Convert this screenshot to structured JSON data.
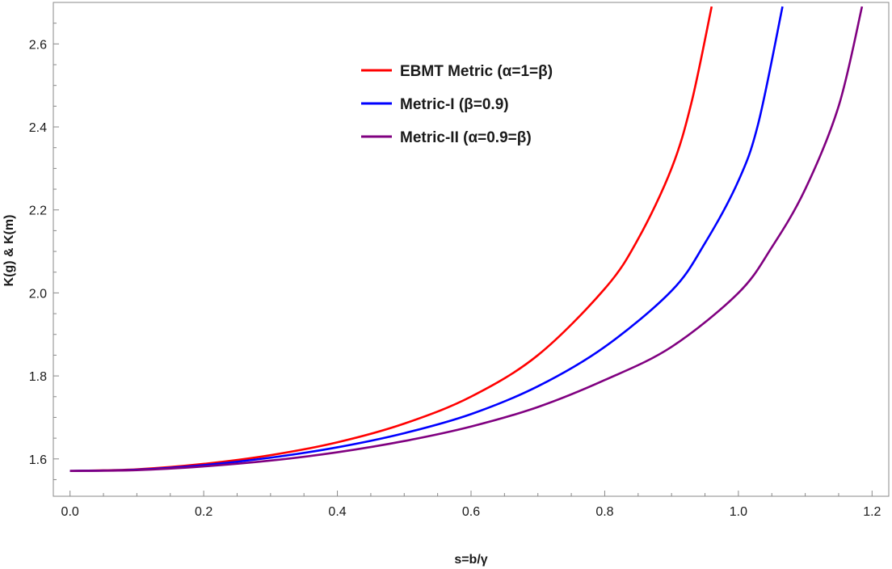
{
  "chart_data": {
    "type": "line",
    "title": "",
    "xlabel": "s=b/γ",
    "ylabel": "K(g) & K(m)",
    "xlim": [
      -0.025,
      1.225
    ],
    "ylim": [
      1.51,
      2.7
    ],
    "x_ticks": [
      0.0,
      0.2,
      0.4,
      0.6,
      0.8,
      1.0,
      1.2
    ],
    "x_tick_labels": [
      "0.0",
      "0.2",
      "0.4",
      "0.6",
      "0.8",
      "1.0",
      "1.2"
    ],
    "y_ticks": [
      1.6,
      1.8,
      2.0,
      2.2,
      2.4,
      2.6
    ],
    "y_tick_labels": [
      "1.6",
      "1.8",
      "2.0",
      "2.2",
      "2.4",
      "2.6"
    ],
    "grid": false,
    "legend_position": "top-center",
    "series": [
      {
        "name": "EBMT Metric (α=1=β)",
        "color": "#ff0000",
        "x": [
          0.0,
          0.1,
          0.2,
          0.3,
          0.4,
          0.5,
          0.6,
          0.7,
          0.8,
          0.85,
          0.9,
          0.93,
          0.96
        ],
        "y": [
          1.571,
          1.575,
          1.588,
          1.609,
          1.64,
          1.685,
          1.75,
          1.85,
          2.01,
          2.13,
          2.3,
          2.46,
          2.69
        ]
      },
      {
        "name": "Metric-I (β=0.9)",
        "color": "#0000ff",
        "x": [
          0.0,
          0.1,
          0.2,
          0.3,
          0.4,
          0.5,
          0.6,
          0.7,
          0.8,
          0.9,
          0.95,
          1.0,
          1.03,
          1.066
        ],
        "y": [
          1.571,
          1.574,
          1.585,
          1.603,
          1.628,
          1.662,
          1.708,
          1.775,
          1.87,
          2.005,
          2.12,
          2.27,
          2.41,
          2.69
        ]
      },
      {
        "name": "Metric-II (α=0.9=β)",
        "color": "#800080",
        "x": [
          0.0,
          0.1,
          0.2,
          0.3,
          0.4,
          0.5,
          0.6,
          0.7,
          0.8,
          0.9,
          1.0,
          1.05,
          1.1,
          1.15,
          1.185
        ],
        "y": [
          1.571,
          1.573,
          1.582,
          1.596,
          1.616,
          1.643,
          1.678,
          1.725,
          1.79,
          1.87,
          2.0,
          2.11,
          2.25,
          2.45,
          2.69
        ]
      }
    ]
  }
}
